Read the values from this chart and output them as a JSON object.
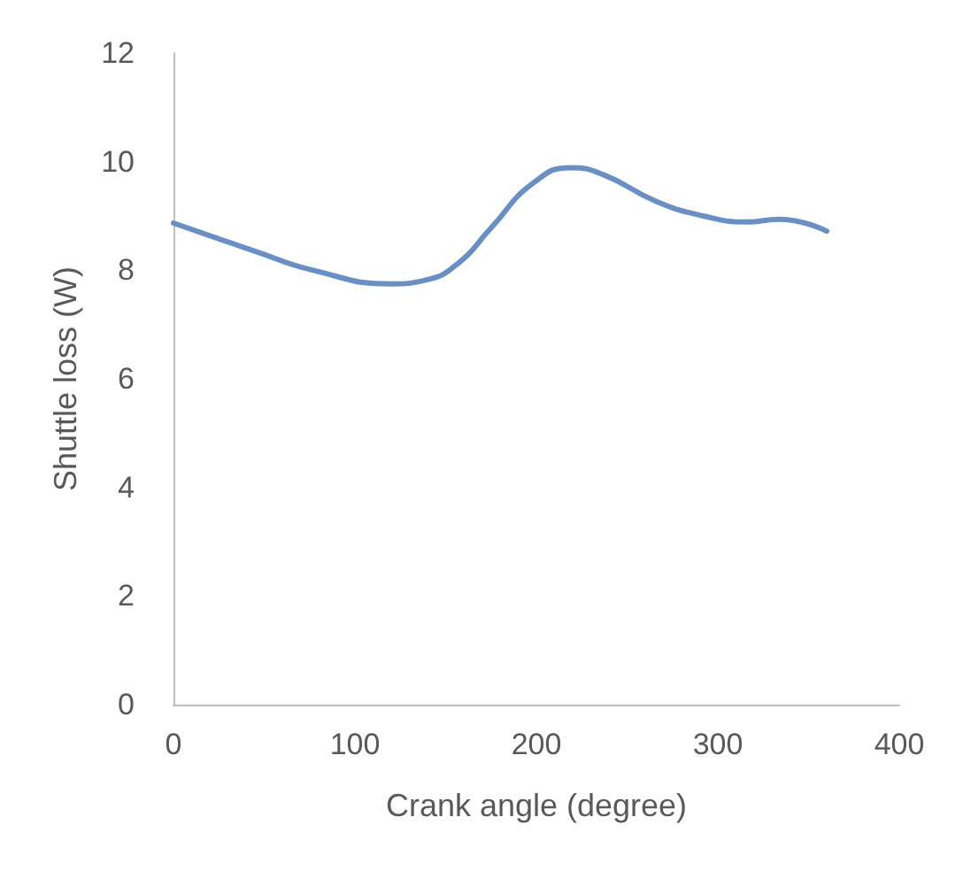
{
  "chart_data": {
    "type": "line",
    "xlabel": "Crank angle (degree)",
    "ylabel": "Shuttle loss (W)",
    "xlim": [
      0,
      400
    ],
    "xticks": [
      0,
      100,
      200,
      300,
      400
    ],
    "ylim": [
      0,
      12
    ],
    "yticks": [
      0,
      2,
      4,
      6,
      8,
      10,
      12
    ],
    "grid": false,
    "marker": "none",
    "line_style": "solid",
    "series": [
      {
        "color": "#6a8fc4",
        "x": [
          0,
          45,
          77,
          120,
          139,
          157,
          175,
          198,
          219,
          237,
          266,
          292,
          316,
          334,
          360
        ],
        "values": [
          8.87,
          8.35,
          8.0,
          7.75,
          7.82,
          8.13,
          8.78,
          9.6,
          9.89,
          9.76,
          9.27,
          9.0,
          8.89,
          8.94,
          8.72
        ]
      }
    ]
  }
}
